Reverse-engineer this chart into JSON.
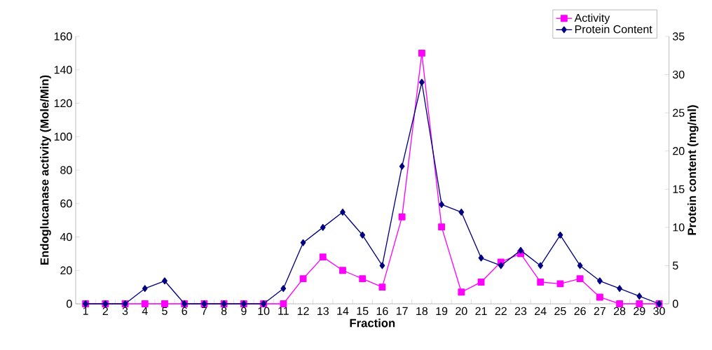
{
  "chart_data": {
    "type": "line",
    "xlabel": "Fraction",
    "ylabel": "Endoglucanase activity  (Mole/Min)",
    "y2label": "Protein content (mg/ml)",
    "categories": [
      "1",
      "2",
      "3",
      "4",
      "5",
      "6",
      "7",
      "8",
      "9",
      "10",
      "11",
      "12",
      "13",
      "14",
      "15",
      "16",
      "17",
      "18",
      "19",
      "20",
      "21",
      "22",
      "23",
      "24",
      "25",
      "26",
      "27",
      "28",
      "29",
      "30"
    ],
    "series": [
      {
        "name": "Activity",
        "color": "#ff00ff",
        "marker": "square",
        "values": [
          0,
          0,
          0,
          0,
          0,
          0,
          0,
          0,
          0,
          0,
          0,
          15,
          28,
          20,
          15,
          10,
          52,
          150,
          46,
          7,
          13,
          25,
          30,
          13,
          12,
          15,
          4,
          0,
          0,
          0
        ]
      },
      {
        "name": "Protein Content",
        "color": "#000080",
        "marker": "diamond",
        "axis": "y2",
        "values": [
          0,
          0,
          0,
          2,
          3,
          0,
          0,
          0,
          0,
          0,
          2,
          8,
          10,
          12,
          9,
          5,
          18,
          29,
          13,
          12,
          6,
          5,
          7,
          5,
          9,
          5,
          3,
          2,
          1,
          0
        ]
      }
    ],
    "ylim": [
      0,
      160
    ],
    "yticks": [
      0,
      20,
      40,
      60,
      80,
      100,
      120,
      140,
      160
    ],
    "y2lim": [
      0,
      35
    ],
    "y2ticks": [
      0,
      5,
      10,
      15,
      20,
      25,
      30,
      35
    ],
    "legend": "top right",
    "grid": false
  }
}
